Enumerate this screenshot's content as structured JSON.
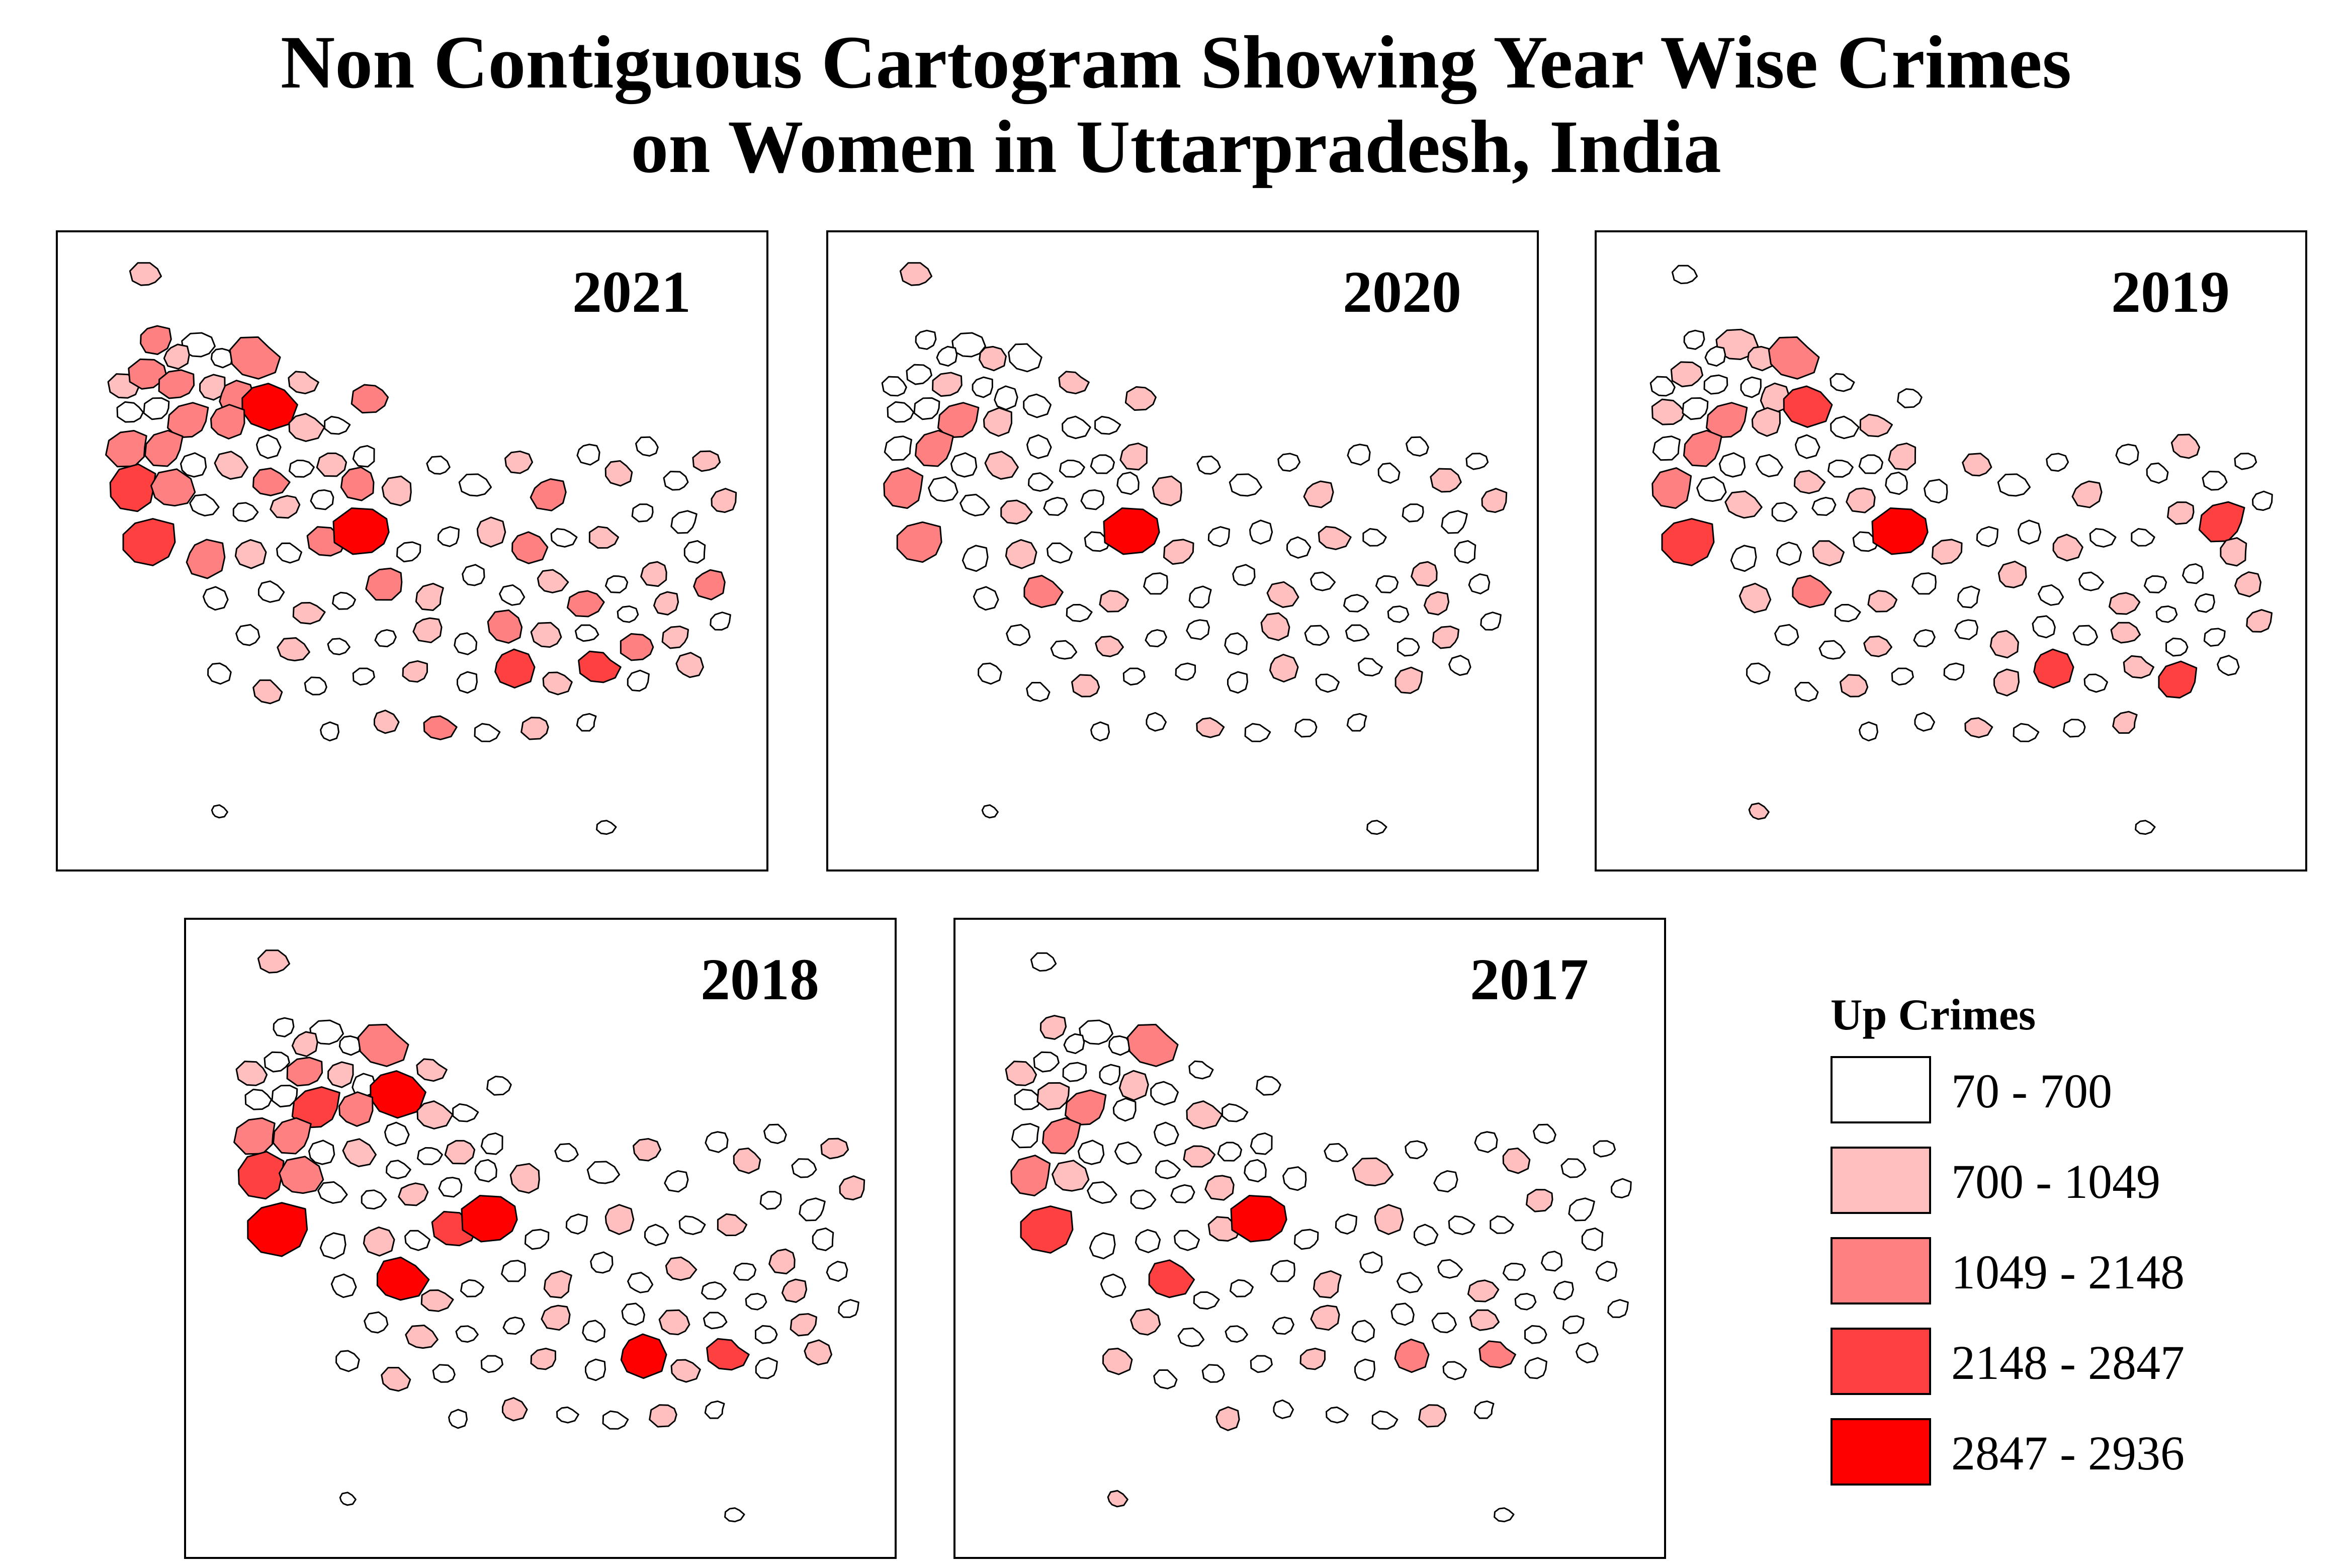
{
  "title": {
    "line1": "Non Contiguous Cartogram Showing Year Wise Crimes",
    "line2": "on Women in Uttarpradesh, India"
  },
  "panels": [
    {
      "year": "2021"
    },
    {
      "year": "2020"
    },
    {
      "year": "2019"
    },
    {
      "year": "2018"
    },
    {
      "year": "2017"
    }
  ],
  "legend": {
    "title": "Up Crimes",
    "classes": [
      {
        "label": "70 - 700",
        "color": "#ffffff"
      },
      {
        "label": "700 - 1049",
        "color": "#ffbfbf"
      },
      {
        "label": "1049 - 2148",
        "color": "#ff8080"
      },
      {
        "label": "2148 - 2847",
        "color": "#ff4040"
      },
      {
        "label": "2847 - 2936",
        "color": "#ff0000"
      }
    ]
  }
}
